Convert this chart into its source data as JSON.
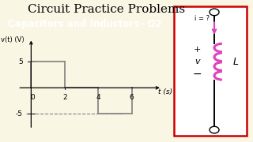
{
  "bg_color": "#faf6e4",
  "title": "Circuit Practice Problems",
  "title_fontsize": 11,
  "subtitle": "Capacitors and Inductors– Q2",
  "subtitle_fontsize": 8.5,
  "subtitle_bg": "#76b828",
  "subtitle_color": "white",
  "graph_xlim": [
    -0.8,
    7.8
  ],
  "graph_ylim": [
    -8.5,
    9.5
  ],
  "xlabel": "t (s)",
  "ylabel": "v(t) (V)",
  "x_ticks": [
    0,
    2,
    4,
    6
  ],
  "y_ticks": [
    5,
    -5
  ],
  "step_segments": [
    {
      "x": [
        0,
        0
      ],
      "y": [
        0,
        5
      ]
    },
    {
      "x": [
        0,
        2
      ],
      "y": [
        5,
        5
      ]
    },
    {
      "x": [
        2,
        2
      ],
      "y": [
        5,
        0
      ]
    },
    {
      "x": [
        2,
        4
      ],
      "y": [
        0,
        0
      ]
    },
    {
      "x": [
        4,
        4
      ],
      "y": [
        0,
        -5
      ]
    },
    {
      "x": [
        4,
        6
      ],
      "y": [
        -5,
        -5
      ]
    },
    {
      "x": [
        6,
        6
      ],
      "y": [
        -5,
        0
      ]
    }
  ],
  "dashed_line": {
    "x": [
      -0.3,
      5.5
    ],
    "y": [
      -5,
      -5
    ]
  },
  "circuit_box_color": "#cc0000",
  "inductor_color": "#dd44bb",
  "arrow_color": "#dd44bb",
  "wire_color": "black"
}
